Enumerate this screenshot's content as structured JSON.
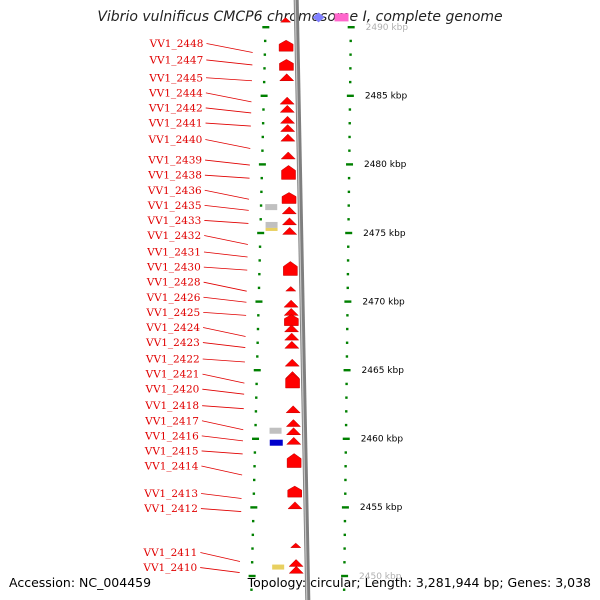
{
  "title": "Vibrio vulnificus CMCP6 chromosome I, complete genome",
  "footer": {
    "accession": "Accession: NC_004459",
    "topology": "Topology: circular; Length: 3,281,944 bp; Genes: 3,038"
  },
  "colors": {
    "gene_forward": "#ff0000",
    "label": "#e00000",
    "tick": "#008000",
    "backbone": "#7f7f7f",
    "rrna": "#c0c0c0",
    "trna": "#e8d060",
    "blue_feature": "#0000cc",
    "pink_feature": "#ff66cc",
    "violet_feature": "#8080ff"
  },
  "scale": {
    "unit": "kbp",
    "labels": [
      {
        "kbp": 2490,
        "text": "2490 kbp",
        "faded": true
      },
      {
        "kbp": 2485,
        "text": "2485 kbp"
      },
      {
        "kbp": 2480,
        "text": "2480 kbp"
      },
      {
        "kbp": 2475,
        "text": "2475 kbp"
      },
      {
        "kbp": 2470,
        "text": "2470 kbp"
      },
      {
        "kbp": 2465,
        "text": "2465 kbp"
      },
      {
        "kbp": 2460,
        "text": "2460 kbp"
      },
      {
        "kbp": 2455,
        "text": "2455 kbp"
      },
      {
        "kbp": 2450,
        "text": "2450 kbp",
        "faded": true
      }
    ]
  },
  "genes": [
    {
      "name": "VV1_2448",
      "kbp": 2488.8
    },
    {
      "name": "VV1_2447",
      "kbp": 2487.6
    },
    {
      "name": "VV1_2445",
      "kbp": 2486.3
    },
    {
      "name": "VV1_2444",
      "kbp": 2485.2
    },
    {
      "name": "VV1_2442",
      "kbp": 2484.1
    },
    {
      "name": "VV1_2441",
      "kbp": 2483.0
    },
    {
      "name": "VV1_2440",
      "kbp": 2481.8
    },
    {
      "name": "VV1_2439",
      "kbp": 2480.3
    },
    {
      "name": "VV1_2438",
      "kbp": 2479.2
    },
    {
      "name": "VV1_2436",
      "kbp": 2478.1
    },
    {
      "name": "VV1_2435",
      "kbp": 2477.0
    },
    {
      "name": "VV1_2433",
      "kbp": 2475.9
    },
    {
      "name": "VV1_2432",
      "kbp": 2474.8
    },
    {
      "name": "VV1_2431",
      "kbp": 2473.6
    },
    {
      "name": "VV1_2430",
      "kbp": 2472.5
    },
    {
      "name": "VV1_2428",
      "kbp": 2471.4
    },
    {
      "name": "VV1_2426",
      "kbp": 2470.3
    },
    {
      "name": "VV1_2425",
      "kbp": 2469.2
    },
    {
      "name": "VV1_2424",
      "kbp": 2468.1
    },
    {
      "name": "VV1_2423",
      "kbp": 2467.0
    },
    {
      "name": "VV1_2422",
      "kbp": 2465.8
    },
    {
      "name": "VV1_2421",
      "kbp": 2464.7
    },
    {
      "name": "VV1_2420",
      "kbp": 2463.6
    },
    {
      "name": "VV1_2418",
      "kbp": 2462.4
    },
    {
      "name": "VV1_2417",
      "kbp": 2461.3
    },
    {
      "name": "VV1_2416",
      "kbp": 2460.2
    },
    {
      "name": "VV1_2415",
      "kbp": 2459.1
    },
    {
      "name": "VV1_2414",
      "kbp": 2458.0
    },
    {
      "name": "VV1_2413",
      "kbp": 2456.0
    },
    {
      "name": "VV1_2412",
      "kbp": 2454.9
    },
    {
      "name": "VV1_2411",
      "kbp": 2451.7
    },
    {
      "name": "VV1_2410",
      "kbp": 2450.6
    }
  ],
  "features": [
    {
      "kbp": 2490.5,
      "type": "gene",
      "shape": "small"
    },
    {
      "kbp": 2488.6,
      "type": "gene",
      "shape": "block"
    },
    {
      "kbp": 2487.2,
      "type": "gene",
      "shape": "block"
    },
    {
      "kbp": 2486.3,
      "type": "gene",
      "shape": "arrow"
    },
    {
      "kbp": 2484.6,
      "type": "gene",
      "shape": "arrow"
    },
    {
      "kbp": 2484.0,
      "type": "gene",
      "shape": "arrow"
    },
    {
      "kbp": 2483.2,
      "type": "gene",
      "shape": "arrow"
    },
    {
      "kbp": 2482.6,
      "type": "gene",
      "shape": "arrow"
    },
    {
      "kbp": 2481.9,
      "type": "gene",
      "shape": "arrow"
    },
    {
      "kbp": 2480.6,
      "type": "gene",
      "shape": "arrow"
    },
    {
      "kbp": 2479.4,
      "type": "gene",
      "shape": "big"
    },
    {
      "kbp": 2477.5,
      "type": "gene",
      "shape": "block"
    },
    {
      "kbp": 2476.6,
      "type": "gene",
      "shape": "arrow"
    },
    {
      "kbp": 2475.8,
      "type": "gene",
      "shape": "arrow"
    },
    {
      "kbp": 2475.1,
      "type": "gene",
      "shape": "arrow"
    },
    {
      "kbp": 2472.4,
      "type": "gene",
      "shape": "big"
    },
    {
      "kbp": 2470.9,
      "type": "gene",
      "shape": "small"
    },
    {
      "kbp": 2469.8,
      "type": "gene",
      "shape": "arrow"
    },
    {
      "kbp": 2469.2,
      "type": "gene",
      "shape": "arrow"
    },
    {
      "kbp": 2468.6,
      "type": "gene",
      "shape": "block"
    },
    {
      "kbp": 2468.0,
      "type": "gene",
      "shape": "arrow"
    },
    {
      "kbp": 2467.4,
      "type": "gene",
      "shape": "arrow"
    },
    {
      "kbp": 2466.8,
      "type": "gene",
      "shape": "arrow"
    },
    {
      "kbp": 2465.5,
      "type": "gene",
      "shape": "arrow"
    },
    {
      "kbp": 2464.6,
      "type": "gene",
      "shape": "arrow"
    },
    {
      "kbp": 2464.2,
      "type": "gene",
      "shape": "big"
    },
    {
      "kbp": 2462.1,
      "type": "gene",
      "shape": "arrow"
    },
    {
      "kbp": 2461.1,
      "type": "gene",
      "shape": "arrow"
    },
    {
      "kbp": 2460.5,
      "type": "gene",
      "shape": "arrow"
    },
    {
      "kbp": 2459.8,
      "type": "gene",
      "shape": "arrow"
    },
    {
      "kbp": 2458.4,
      "type": "gene",
      "shape": "big"
    },
    {
      "kbp": 2456.1,
      "type": "gene",
      "shape": "block"
    },
    {
      "kbp": 2455.1,
      "type": "gene",
      "shape": "arrow"
    },
    {
      "kbp": 2452.2,
      "type": "gene",
      "shape": "small"
    },
    {
      "kbp": 2450.9,
      "type": "gene",
      "shape": "arrow"
    },
    {
      "kbp": 2450.4,
      "type": "gene",
      "shape": "arrow"
    },
    {
      "kbp": 2476.8,
      "type": "rrna",
      "shape": "rect"
    },
    {
      "kbp": 2475.5,
      "type": "rrna-trna",
      "shape": "rect"
    },
    {
      "kbp": 2460.5,
      "type": "rrna",
      "shape": "rect"
    },
    {
      "kbp": 2459.7,
      "type": "blue",
      "shape": "rect"
    },
    {
      "kbp": 2450.6,
      "type": "trna",
      "shape": "rect"
    },
    {
      "kbp": 2490.7,
      "type": "pink",
      "shape": "rect"
    },
    {
      "kbp": 2490.7,
      "type": "violet",
      "shape": "diamond"
    }
  ]
}
